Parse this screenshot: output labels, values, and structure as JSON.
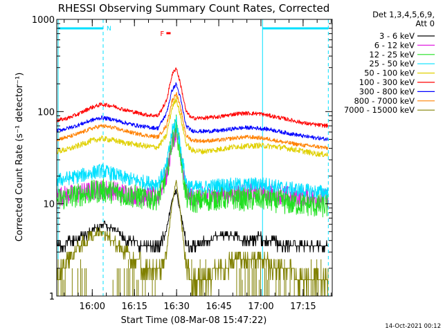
{
  "chart_data": {
    "type": "line",
    "title": "RHESSI Observing Summary Count Rates, Corrected",
    "xlabel": "Start Time (08-Mar-08 15:47:22)",
    "ylabel": "Corrected Count Rate (s⁻¹ detector⁻¹)",
    "y_scale": "log",
    "ylim": [
      1,
      1000
    ],
    "xlim_minutes": [
      0,
      98
    ],
    "x_start": "15:47:22",
    "y_tick_labels": [
      "1",
      "10",
      "100",
      "1000"
    ],
    "x_tick_labels": [
      "16:00",
      "16:15",
      "16:30",
      "16:45",
      "17:00",
      "17:15"
    ],
    "x_tick_minutes": [
      12.63,
      27.63,
      42.63,
      57.63,
      72.63,
      87.63
    ],
    "legend_header": [
      "Det 1,3,4,5,6,9,",
      "Att 0"
    ],
    "legend_placement": "right",
    "footer_date": "14-Oct-2021 00:12",
    "annotations": {
      "night_bars": [
        {
          "x0": 0.5,
          "x1": 16.5,
          "label": "N"
        },
        {
          "x0": 73.2,
          "x1": 96.6
        }
      ],
      "dashed_lines_minutes": [
        16.5,
        96.6
      ],
      "solid_lines_minutes": [
        0.5,
        73.2
      ],
      "flare_marker": {
        "label": "F",
        "x0": 39.0,
        "x1": 40.5,
        "y": 600
      }
    },
    "series": [
      {
        "name": "3 - 6 keV",
        "color": "#000000",
        "noise": 0.45,
        "x": [
          0,
          8,
          16,
          20,
          24,
          28,
          32,
          36,
          39,
          41,
          42.5,
          44,
          46,
          48,
          52,
          58,
          64,
          68,
          72,
          76,
          80,
          84,
          88,
          92,
          96.6
        ],
        "values": [
          3.5,
          4.2,
          6.0,
          5.5,
          4.2,
          3.8,
          3.5,
          3.4,
          5,
          11,
          14,
          8,
          3.8,
          3.2,
          3.8,
          4.5,
          4.3,
          4.1,
          4.3,
          4.0,
          3.6,
          3.4,
          3.3,
          3.3,
          3.3
        ]
      },
      {
        "name": "6 - 12 keV",
        "color": "#e020e0",
        "noise": 0.25,
        "x": [
          0,
          8,
          16,
          20,
          24,
          28,
          32,
          36,
          39,
          41,
          42.5,
          44,
          46,
          48,
          52,
          58,
          64,
          68,
          72,
          76,
          80,
          84,
          88,
          92,
          96.6
        ],
        "values": [
          12,
          13,
          14.5,
          14,
          13,
          12.5,
          12,
          12,
          20,
          45,
          60,
          35,
          14,
          12,
          12,
          13,
          13,
          13,
          13.5,
          13,
          12.5,
          12,
          12,
          11.5,
          11.5
        ]
      },
      {
        "name": "12 - 25 keV",
        "color": "#20e020",
        "noise": 0.3,
        "x": [
          0,
          8,
          16,
          20,
          24,
          28,
          32,
          36,
          39,
          41,
          42.5,
          44,
          46,
          48,
          52,
          58,
          64,
          68,
          72,
          76,
          80,
          84,
          88,
          92,
          96.6
        ],
        "values": [
          11,
          12.5,
          14,
          13.5,
          12.5,
          12,
          11.5,
          11.5,
          20,
          50,
          70,
          35,
          12,
          10.5,
          11,
          11.5,
          11.5,
          11,
          11.5,
          11,
          10.5,
          10,
          10,
          9.5,
          9.5
        ]
      },
      {
        "name": "25 - 50 keV",
        "color": "#00e0ff",
        "noise": 0.18,
        "x": [
          0,
          8,
          16,
          20,
          24,
          28,
          32,
          36,
          39,
          41,
          42.5,
          44,
          46,
          48,
          52,
          58,
          64,
          68,
          72,
          76,
          80,
          84,
          88,
          92,
          96.6
        ],
        "values": [
          18,
          20,
          23,
          21,
          19,
          18,
          17,
          16.5,
          25,
          60,
          80,
          40,
          17,
          15,
          15,
          16,
          16,
          16,
          16.5,
          16,
          15,
          14.5,
          14,
          13.5,
          13.5
        ]
      },
      {
        "name": "50 - 100 keV",
        "color": "#e0d000",
        "noise": 0.07,
        "x": [
          0,
          4,
          8,
          12,
          16,
          20,
          24,
          28,
          32,
          36,
          39,
          41,
          42.5,
          44,
          46,
          48,
          52,
          58,
          64,
          68,
          72,
          76,
          80,
          84,
          88,
          92,
          96.6
        ],
        "values": [
          37,
          39,
          43,
          48,
          51,
          49,
          46,
          44,
          42,
          41,
          55,
          110,
          140,
          90,
          45,
          38,
          37,
          39,
          42,
          42,
          43,
          42,
          41,
          39,
          37,
          35,
          34
        ]
      },
      {
        "name": "100 - 300 keV",
        "color": "#ff0000",
        "noise": 0.05,
        "x": [
          0,
          4,
          8,
          12,
          16,
          20,
          24,
          28,
          32,
          36,
          39,
          41,
          42.5,
          44,
          46,
          48,
          52,
          58,
          64,
          68,
          72,
          76,
          80,
          84,
          88,
          92,
          96.6
        ],
        "values": [
          80,
          85,
          95,
          110,
          120,
          115,
          105,
          98,
          92,
          90,
          130,
          250,
          300,
          200,
          100,
          85,
          85,
          88,
          95,
          96,
          95,
          90,
          85,
          80,
          75,
          72,
          70
        ]
      },
      {
        "name": "300 - 800 keV",
        "color": "#0000ff",
        "noise": 0.05,
        "x": [
          0,
          4,
          8,
          12,
          16,
          20,
          24,
          28,
          32,
          36,
          39,
          41,
          42.5,
          44,
          46,
          48,
          52,
          58,
          64,
          68,
          72,
          76,
          80,
          84,
          88,
          92,
          96.6
        ],
        "values": [
          62,
          66,
          72,
          80,
          86,
          82,
          76,
          71,
          68,
          66,
          95,
          170,
          200,
          140,
          70,
          62,
          61,
          62,
          66,
          67,
          66,
          64,
          60,
          57,
          54,
          52,
          50
        ]
      },
      {
        "name": "800 - 7000 keV",
        "color": "#ff8000",
        "noise": 0.05,
        "x": [
          0,
          4,
          8,
          12,
          16,
          20,
          24,
          28,
          32,
          36,
          39,
          41,
          42.5,
          44,
          46,
          48,
          52,
          58,
          64,
          68,
          72,
          76,
          80,
          84,
          88,
          92,
          96.6
        ],
        "values": [
          50,
          53,
          58,
          65,
          70,
          67,
          62,
          58,
          55,
          53,
          70,
          130,
          160,
          110,
          55,
          49,
          48,
          49,
          52,
          53,
          52,
          50,
          47,
          45,
          43,
          42,
          40
        ]
      },
      {
        "name": "7000 - 15000 keV",
        "color": "#808000",
        "noise": 0.0,
        "x": [
          0,
          4,
          8,
          12,
          16,
          20,
          24,
          28,
          32,
          36,
          39,
          41,
          42.5,
          44,
          46,
          48,
          52,
          58,
          64,
          68,
          72,
          76,
          80,
          84,
          88,
          92,
          96.6
        ],
        "values": [
          1.5,
          2.5,
          3.5,
          4.5,
          5,
          4,
          3,
          2.5,
          2,
          1.8,
          3,
          10,
          18,
          8,
          2,
          1.5,
          1.5,
          2,
          2.5,
          2.5,
          2.5,
          2.2,
          2,
          1.8,
          1.5,
          1.5,
          1.5
        ]
      }
    ]
  }
}
